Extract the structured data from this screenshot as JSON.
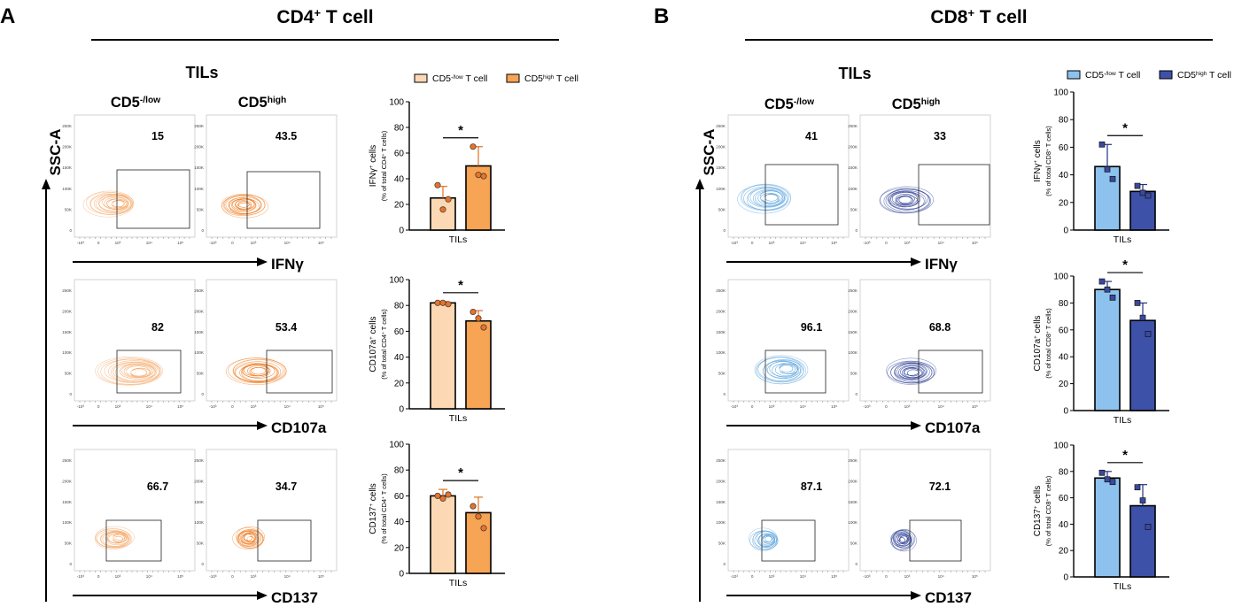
{
  "panels": [
    {
      "letter": "A",
      "title": "CD4",
      "title_sup": "+",
      "title_tail": " T cell",
      "tils_label": "TILs",
      "col1_main": "CD5",
      "col1_sup": "-/low",
      "col2_main": "CD5",
      "col2_sup": "high",
      "ssc_label": "SSC-A",
      "palette": {
        "low": "#F4A460",
        "high": "#EE7A1C",
        "bar_low": "#FCD9B4",
        "bar_high": "#F7A455",
        "dot": "#E8732A",
        "line": "#E07020"
      },
      "legend": [
        {
          "main": "CD5",
          "sup": "-/low",
          "tail": " T cell"
        },
        {
          "main": "CD5",
          "sup": "high",
          "tail": " T cell"
        }
      ],
      "rows": [
        {
          "marker": "IFNγ",
          "pct_low": "15",
          "pct_high": "43.5"
        },
        {
          "marker": "CD107a",
          "pct_low": "82",
          "pct_high": "53.4"
        },
        {
          "marker": "CD137",
          "pct_low": "66.7",
          "pct_high": "34.7"
        }
      ],
      "y_ticks": [
        "0",
        "20",
        "40",
        "60",
        "80",
        "100"
      ],
      "fcs_y_ticks": [
        "250K",
        "200K",
        "150K",
        "100K",
        "50K",
        "0"
      ],
      "fcs_x_ticks": [
        "-10³",
        "0",
        "10³",
        "10⁴",
        "10⁵"
      ]
    },
    {
      "letter": "B",
      "title": "CD8",
      "title_sup": "+",
      "title_tail": " T cell",
      "tils_label": "TILs",
      "col1_main": "CD5",
      "col1_sup": "-/low",
      "col2_main": "CD5",
      "col2_sup": "high",
      "ssc_label": "SSC-A",
      "palette": {
        "low": "#5BA3DC",
        "high": "#2E3F96",
        "bar_low": "#8DC2EE",
        "bar_high": "#3E51A8",
        "dot": "#3A4AA0",
        "line": "#243080"
      },
      "legend": [
        {
          "main": "CD5",
          "sup": "-/low",
          "tail": " T cell"
        },
        {
          "main": "CD5",
          "sup": "high",
          "tail": " T cell"
        }
      ],
      "rows": [
        {
          "marker": "IFNγ",
          "pct_low": "41",
          "pct_high": "33"
        },
        {
          "marker": "CD107a",
          "pct_low": "96.1",
          "pct_high": "68.8"
        },
        {
          "marker": "CD137",
          "pct_low": "87.1",
          "pct_high": "72.1"
        }
      ],
      "y_ticks": [
        "0",
        "20",
        "40",
        "60",
        "80",
        "100"
      ],
      "fcs_y_ticks": [
        "250K",
        "200K",
        "150K",
        "100K",
        "50K",
        "0"
      ],
      "fcs_x_ticks": [
        "-10³",
        "0",
        "10³",
        "10⁴",
        "10⁵"
      ]
    }
  ],
  "chart_data": [
    {
      "type": "bar",
      "panel": "A",
      "title": "IFNγ",
      "categories": [
        "TILs"
      ],
      "ylabel_main": "IFNγ",
      "ylabel_sup": "+",
      "ylabel_tail": " cells",
      "ylabel_sub": "(% of total CD4",
      "ylabel_sub_sup": "+",
      "ylabel_sub_tail": " T cells)",
      "xlabel": "TILs",
      "ylim": [
        0,
        100
      ],
      "significance": "*",
      "series": [
        {
          "name": "CD5-/low T cell",
          "mean": 25,
          "error": 9,
          "points": [
            35,
            16,
            24
          ]
        },
        {
          "name": "CD5high T cell",
          "mean": 50,
          "error": 15,
          "points": [
            65,
            43,
            42
          ]
        }
      ]
    },
    {
      "type": "bar",
      "panel": "A",
      "title": "CD107a",
      "categories": [
        "TILs"
      ],
      "ylabel_main": "CD107a",
      "ylabel_sup": "+",
      "ylabel_tail": " cells",
      "ylabel_sub": "(% of total CD4",
      "ylabel_sub_sup": "+",
      "ylabel_sub_tail": " T cells)",
      "xlabel": "TILs",
      "ylim": [
        0,
        100
      ],
      "significance": "*",
      "series": [
        {
          "name": "CD5-/low T cell",
          "mean": 82,
          "error": 1,
          "points": [
            82,
            82,
            81
          ]
        },
        {
          "name": "CD5high T cell",
          "mean": 68,
          "error": 8,
          "points": [
            75,
            70,
            63
          ]
        }
      ]
    },
    {
      "type": "bar",
      "panel": "A",
      "title": "CD137",
      "categories": [
        "TILs"
      ],
      "ylabel_main": "CD137",
      "ylabel_sup": "+",
      "ylabel_tail": " cells",
      "ylabel_sub": "(% of total CD4",
      "ylabel_sub_sup": "+",
      "ylabel_sub_tail": " T cells)",
      "xlabel": "TILs",
      "ylim": [
        0,
        100
      ],
      "significance": "*",
      "series": [
        {
          "name": "CD5-/low T cell",
          "mean": 60,
          "error": 5,
          "points": [
            60,
            58,
            61
          ]
        },
        {
          "name": "CD5high T cell",
          "mean": 47,
          "error": 12,
          "points": [
            52,
            44,
            35
          ]
        }
      ]
    },
    {
      "type": "bar",
      "panel": "B",
      "title": "IFNγ",
      "categories": [
        "TILs"
      ],
      "ylabel_main": "IFNγ",
      "ylabel_sup": "+",
      "ylabel_tail": " cells",
      "ylabel_sub": "(% of total CD8",
      "ylabel_sub_sup": "+",
      "ylabel_sub_tail": " T cells)",
      "xlabel": "TILs",
      "ylim": [
        0,
        100
      ],
      "significance": "*",
      "series": [
        {
          "name": "CD5-/low T cell",
          "mean": 46,
          "error": 16,
          "points": [
            62,
            44,
            37
          ]
        },
        {
          "name": "CD5high T cell",
          "mean": 28,
          "error": 5,
          "points": [
            32,
            27,
            25
          ]
        }
      ]
    },
    {
      "type": "bar",
      "panel": "B",
      "title": "CD107a",
      "categories": [
        "TILs"
      ],
      "ylabel_main": "CD107a",
      "ylabel_sup": "+",
      "ylabel_tail": " cells",
      "ylabel_sub": "(% of total CD8",
      "ylabel_sub_sup": "+",
      "ylabel_sub_tail": " T cells)",
      "xlabel": "TILs",
      "ylim": [
        0,
        100
      ],
      "significance": "*",
      "series": [
        {
          "name": "CD5-/low T cell",
          "mean": 90,
          "error": 6,
          "points": [
            96,
            90,
            84
          ]
        },
        {
          "name": "CD5high T cell",
          "mean": 67,
          "error": 13,
          "points": [
            80,
            69,
            57
          ]
        }
      ]
    },
    {
      "type": "bar",
      "panel": "B",
      "title": "CD137",
      "categories": [
        "TILs"
      ],
      "ylabel_main": "CD137",
      "ylabel_sup": "+",
      "ylabel_tail": " cells",
      "ylabel_sub": "(% of total CD8",
      "ylabel_sub_sup": "+",
      "ylabel_sub_tail": " T cells)",
      "xlabel": "TILs",
      "ylim": [
        0,
        100
      ],
      "significance": "*",
      "series": [
        {
          "name": "CD5-/low T cell",
          "mean": 75,
          "error": 5,
          "points": [
            79,
            74,
            72
          ]
        },
        {
          "name": "CD5high T cell",
          "mean": 54,
          "error": 16,
          "points": [
            68,
            58,
            38
          ]
        }
      ]
    }
  ]
}
